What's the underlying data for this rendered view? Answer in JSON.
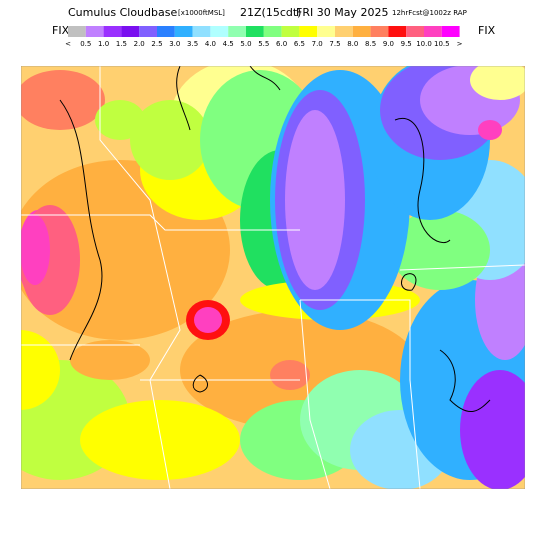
{
  "header": {
    "title": "Cumulus Cloudbase",
    "units": "[x1000ftMSL]",
    "time": "21Z(15cdt)",
    "date": "FRI 30 May 2025",
    "model": "12hrFcst@1002z RAP",
    "fix_left": "FIX",
    "fix_right": "FIX"
  },
  "legend": {
    "labels": [
      "<",
      "0.5",
      "1.0",
      "1.5",
      "2.0",
      "2.5",
      "3.0",
      "3.5",
      "4.0",
      "4.5",
      "5.0",
      "5.5",
      "6.0",
      "6.5",
      "7.0",
      "7.5",
      "8.0",
      "8.5",
      "9.0",
      "9.5",
      "10.0",
      "10.5",
      ">"
    ],
    "colors": [
      "#c0c0c0",
      "#c080ff",
      "#9a30ff",
      "#7a10f0",
      "#8060ff",
      "#2a80ff",
      "#30b0ff",
      "#90e0ff",
      "#b0ffff",
      "#90ffb0",
      "#20e060",
      "#80ff80",
      "#c0ff40",
      "#ffff00",
      "#ffff90",
      "#ffd070",
      "#ffb040",
      "#ff8060",
      "#ff1010",
      "#ff6080",
      "#ff40c0",
      "#ff00ff"
    ]
  }
}
